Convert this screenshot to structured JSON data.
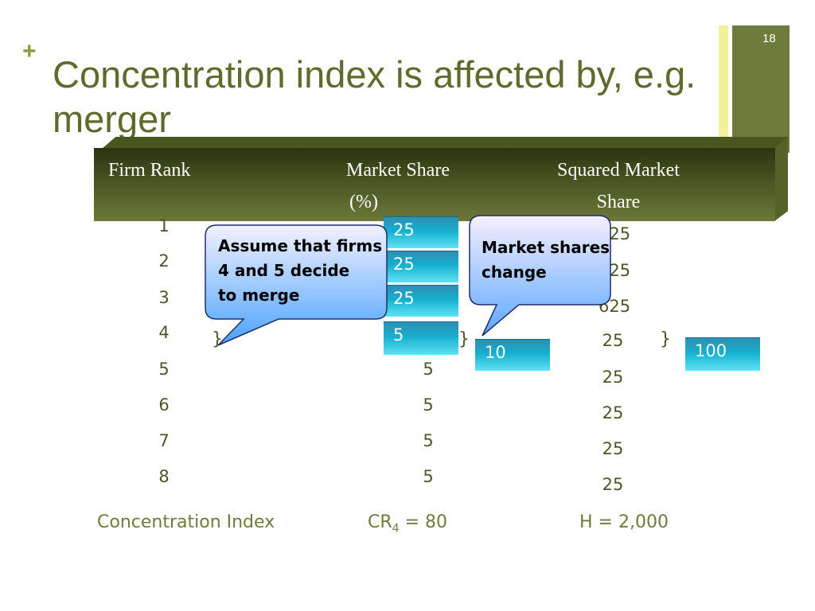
{
  "slide": {
    "number": "18",
    "title": "Concentration index is affected by, e.g. merger"
  },
  "table": {
    "headers": {
      "rank": "Firm Rank",
      "share_line1": "Market Share",
      "share_line2": "(%)",
      "sq_line1": "Squared Market",
      "sq_line2": "Share"
    },
    "rows": [
      {
        "rank": "1",
        "share": "25",
        "sq": "625"
      },
      {
        "rank": "2",
        "share": "25",
        "sq": "625"
      },
      {
        "rank": "3",
        "share": "25",
        "sq": "625"
      },
      {
        "rank": "4",
        "share": "5",
        "sq": "25"
      },
      {
        "rank": "5",
        "share": "5",
        "sq": "25"
      },
      {
        "rank": "6",
        "share": "5",
        "sq": "25"
      },
      {
        "rank": "7",
        "share": "5",
        "sq": "25"
      },
      {
        "rank": "8",
        "share": "5",
        "sq": "25"
      }
    ],
    "brace": "}",
    "post_merger": {
      "share_boxes": [
        "25",
        "25",
        "25",
        "5"
      ],
      "merged_share": "10",
      "merged_sq": "100"
    }
  },
  "callouts": {
    "left_line1": "Assume that firms",
    "left_line2": "4 and 5 decide",
    "left_line3": "to merge",
    "right_line1": "Market shares",
    "right_line2": "change"
  },
  "footer": {
    "label": "Concentration Index",
    "cr_prefix": "CR",
    "cr_sub": "4",
    "cr_value": " = 80",
    "h": "H = 2,000"
  },
  "colors": {
    "title": "#5f6a2d",
    "band": "#4f5b26",
    "accent_box": "#16b0cf",
    "callout": "#5fa8ff"
  }
}
